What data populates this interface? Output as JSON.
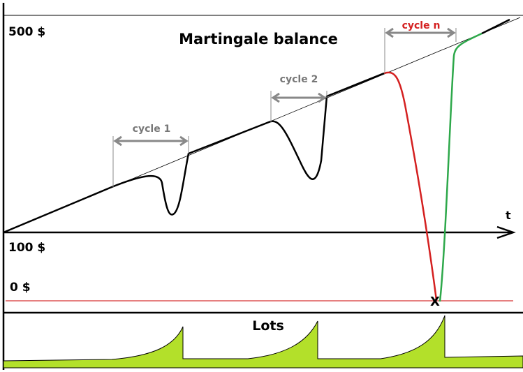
{
  "title": "Martingale balance",
  "axis": {
    "top_label": "500 $",
    "mid_label": "100 $",
    "zero_label": "0 $",
    "time_label": "t"
  },
  "cycles": [
    {
      "label": "cycle 1"
    },
    {
      "label": "cycle 2"
    },
    {
      "label": "cycle n"
    }
  ],
  "ruin_marker": "X",
  "lots_panel": {
    "title": "Lots"
  }
}
